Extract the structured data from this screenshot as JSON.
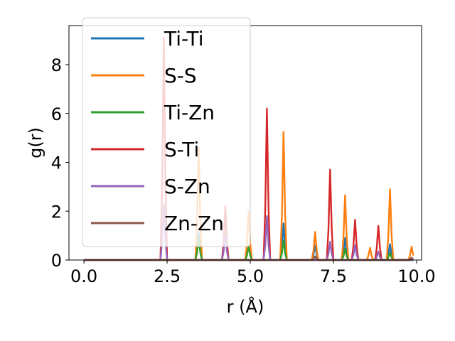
{
  "chart_data": {
    "type": "line",
    "title": "",
    "xlabel": "r (Å)",
    "ylabel": "g(r)",
    "xlim": [
      -0.45,
      10.15
    ],
    "ylim": [
      0,
      9.6
    ],
    "xticks": [
      0.0,
      2.5,
      5.0,
      7.5,
      10.0
    ],
    "xtick_labels": [
      "0.0",
      "2.5",
      "5.0",
      "7.5",
      "10.0"
    ],
    "yticks": [
      0,
      2,
      4,
      6,
      8
    ],
    "ytick_labels": [
      "0",
      "2",
      "4",
      "6",
      "8"
    ],
    "grid": false,
    "legend_position": "upper-left",
    "series": [
      {
        "name": "Ti-Ti",
        "color": "#1f77b4",
        "peaks": [
          [
            3.45,
            1.1
          ],
          [
            6.0,
            1.5
          ],
          [
            6.95,
            0.6
          ],
          [
            7.85,
            0.9
          ],
          [
            9.2,
            0.65
          ]
        ]
      },
      {
        "name": "S-S",
        "color": "#ff7f0e",
        "peaks": [
          [
            3.45,
            4.6
          ],
          [
            4.95,
            2.0
          ],
          [
            6.0,
            5.25
          ],
          [
            6.95,
            1.15
          ],
          [
            7.85,
            2.65
          ],
          [
            8.6,
            0.5
          ],
          [
            9.2,
            2.9
          ],
          [
            9.85,
            0.55
          ]
        ]
      },
      {
        "name": "Ti-Zn",
        "color": "#2ca02c",
        "peaks": [
          [
            3.45,
            0.9
          ],
          [
            4.95,
            0.55
          ],
          [
            6.0,
            0.8
          ],
          [
            7.85,
            0.45
          ],
          [
            9.2,
            0.3
          ]
        ]
      },
      {
        "name": "S-Ti",
        "color": "#d62728",
        "peaks": [
          [
            2.4,
            9.1
          ],
          [
            4.25,
            2.2
          ],
          [
            5.5,
            6.2
          ],
          [
            7.4,
            3.7
          ],
          [
            8.15,
            1.65
          ],
          [
            8.85,
            1.4
          ]
        ]
      },
      {
        "name": "S-Zn",
        "color": "#9467bd",
        "peaks": [
          [
            2.4,
            2.3
          ],
          [
            4.25,
            1.05
          ],
          [
            5.5,
            1.8
          ],
          [
            7.4,
            0.75
          ],
          [
            8.15,
            0.6
          ],
          [
            8.85,
            0.35
          ]
        ]
      },
      {
        "name": "Zn-Zn",
        "color": "#8c564b",
        "peaks": [
          [
            6.95,
            0.15
          ],
          [
            9.85,
            0.1
          ]
        ]
      }
    ]
  }
}
